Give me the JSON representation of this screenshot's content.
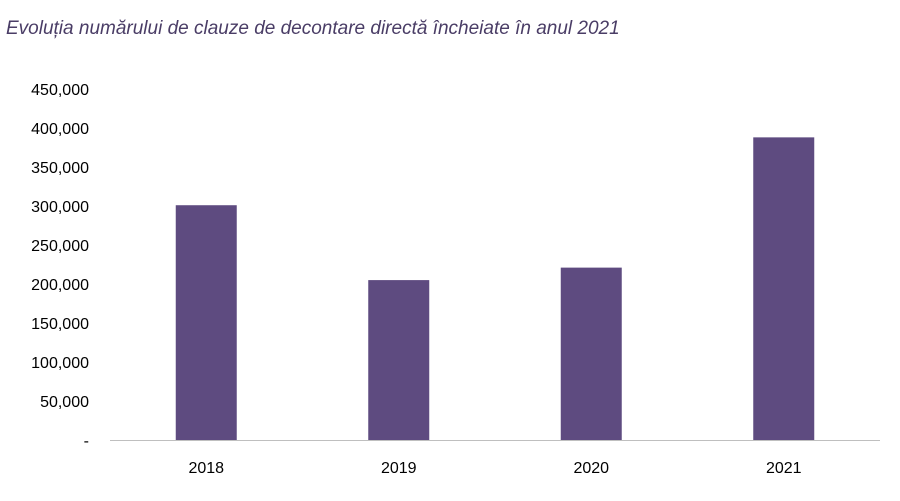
{
  "chart_data": {
    "type": "bar",
    "title": "Evoluția numărului de clauze de decontare directă încheiate în anul 2021",
    "categories": [
      "2018",
      "2019",
      "2020",
      "2021"
    ],
    "values": [
      301000,
      205000,
      221000,
      388000
    ],
    "ylim": [
      0,
      450000
    ],
    "y_ticks": [
      0,
      50000,
      100000,
      150000,
      200000,
      250000,
      300000,
      350000,
      400000,
      450000
    ],
    "y_tick_labels": [
      "-",
      "50,000",
      "100,000",
      "150,000",
      "200,000",
      "250,000",
      "300,000",
      "350,000",
      "400,000",
      "450,000"
    ],
    "xlabel": "",
    "ylabel": "",
    "grid": false,
    "legend": "none",
    "colors": {
      "bar": "#5e4b80",
      "title": "#4a3d66",
      "axis": "#bfbfbf"
    }
  }
}
